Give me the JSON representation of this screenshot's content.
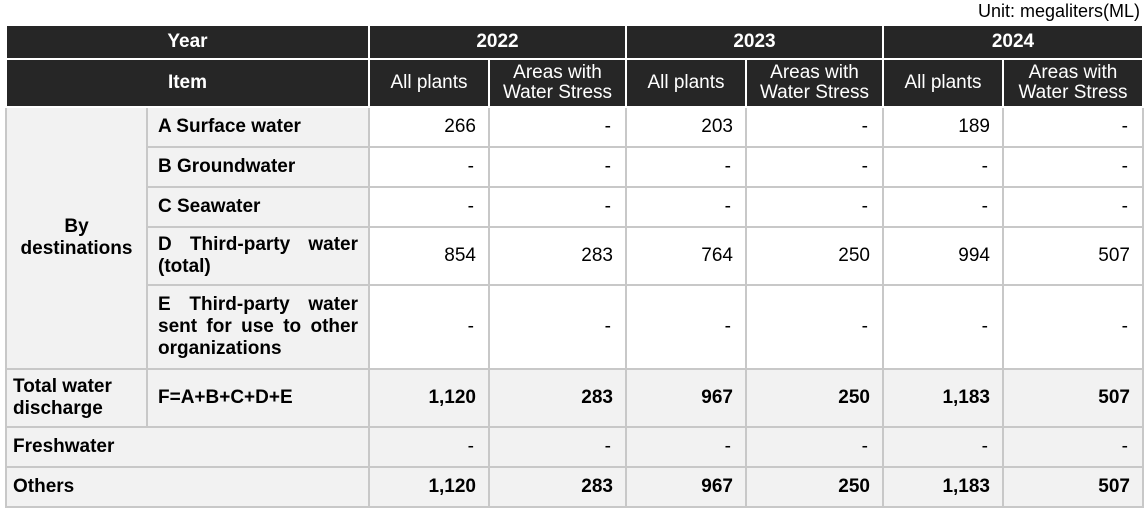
{
  "unit_label": "Unit: megaliters(ML)",
  "header": {
    "year_label": "Year",
    "item_label": "Item",
    "years": [
      "2022",
      "2023",
      "2024"
    ],
    "sub_all": "All plants",
    "sub_stress": "Areas with Water Stress"
  },
  "destinations_label": "By destinations",
  "rows": [
    {
      "label": "A Surface water",
      "values": [
        "266",
        "-",
        "203",
        "-",
        "189",
        "-"
      ]
    },
    {
      "label": "B Groundwater",
      "values": [
        "-",
        "-",
        "-",
        "-",
        "-",
        "-"
      ]
    },
    {
      "label": "C Seawater",
      "values": [
        "-",
        "-",
        "-",
        "-",
        "-",
        "-"
      ]
    },
    {
      "label": "D Third-party water (total)",
      "values": [
        "854",
        "283",
        "764",
        "250",
        "994",
        "507"
      ]
    },
    {
      "label": "E Third-party water sent for use to other organizations",
      "values": [
        "-",
        "-",
        "-",
        "-",
        "-",
        "-"
      ]
    }
  ],
  "total": {
    "label": "Total water discharge",
    "formula": "F=A+B+C+D+E",
    "values": [
      "1,120",
      "283",
      "967",
      "250",
      "1,183",
      "507"
    ]
  },
  "freshwater": {
    "label": "Freshwater",
    "values": [
      "-",
      "-",
      "-",
      "-",
      "-",
      "-"
    ]
  },
  "others": {
    "label": "Others",
    "values": [
      "1,120",
      "283",
      "967",
      "250",
      "1,183",
      "507"
    ]
  }
}
